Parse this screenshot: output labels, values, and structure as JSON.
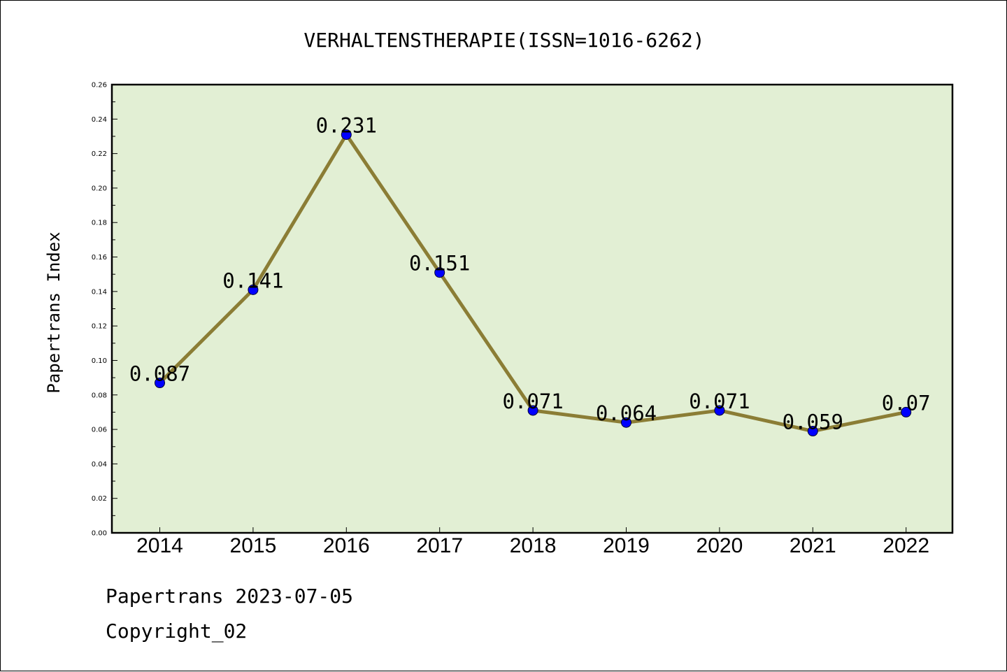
{
  "chart_data": {
    "type": "line",
    "title": "VERHALTENSTHERAPIE(ISSN=1016-6262)",
    "xlabel": "",
    "ylabel": "Papertrans Index",
    "categories": [
      "2014",
      "2015",
      "2016",
      "2017",
      "2018",
      "2019",
      "2020",
      "2021",
      "2022"
    ],
    "series": [
      {
        "values": [
          0.087,
          0.141,
          0.231,
          0.151,
          0.071,
          0.064,
          0.071,
          0.059,
          0.07
        ],
        "labels": [
          "0.087",
          "0.141",
          "0.231",
          "0.151",
          "0.071",
          "0.064",
          "0.071",
          "0.059",
          "0.07"
        ]
      }
    ],
    "ylim": [
      0,
      0.26
    ],
    "yticks": [
      "0.00",
      "0.02",
      "0.04",
      "0.06",
      "0.08",
      "0.10",
      "0.12",
      "0.14",
      "0.16",
      "0.18",
      "0.20",
      "0.22",
      "0.24",
      "0.26"
    ],
    "grid": false,
    "legend": "none"
  },
  "footer": {
    "line1": "Papertrans 2023-07-05",
    "line2": "Copyright_02"
  },
  "colors": {
    "plot_background": "#e2efd4",
    "line": "#8b7d35",
    "marker": "#0000ff",
    "axes": "#000000"
  }
}
